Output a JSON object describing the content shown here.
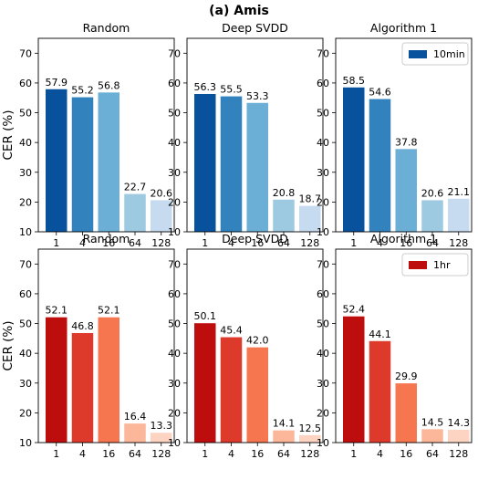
{
  "figure": {
    "suptitle": "(a) Amis",
    "ylabel": "CER (%)",
    "yticks": [
      10,
      20,
      30,
      40,
      50,
      60,
      70
    ],
    "ylim": [
      10,
      75
    ]
  },
  "chart_data": [
    {
      "type": "bar",
      "row": 0,
      "col": 0,
      "title": "Random",
      "categories": [
        "1",
        "4",
        "16",
        "64",
        "128"
      ],
      "values": [
        57.9,
        55.2,
        56.8,
        22.7,
        20.6
      ],
      "labels": [
        "57.9",
        "55.2",
        "56.8",
        "22.7",
        "20.6"
      ],
      "colors": [
        "#08519c",
        "#3182bd",
        "#6baed6",
        "#9ecae1",
        "#c6dbef"
      ],
      "ylabel": "CER (%)",
      "ylim": [
        10,
        75
      ],
      "grid": false
    },
    {
      "type": "bar",
      "row": 0,
      "col": 1,
      "title": "Deep SVDD",
      "categories": [
        "1",
        "4",
        "16",
        "64",
        "128"
      ],
      "values": [
        56.3,
        55.5,
        53.3,
        20.8,
        18.7
      ],
      "labels": [
        "56.3",
        "55.5",
        "53.3",
        "20.8",
        "18.7"
      ],
      "colors": [
        "#08519c",
        "#3182bd",
        "#6baed6",
        "#9ecae1",
        "#c6dbef"
      ],
      "ylim": [
        10,
        75
      ],
      "grid": false
    },
    {
      "type": "bar",
      "row": 0,
      "col": 2,
      "title": "Algorithm 1",
      "categories": [
        "1",
        "4",
        "16",
        "64",
        "128"
      ],
      "values": [
        58.5,
        54.6,
        37.8,
        20.6,
        21.1
      ],
      "labels": [
        "58.5",
        "54.6",
        "37.8",
        "20.6",
        "21.1"
      ],
      "colors": [
        "#08519c",
        "#3182bd",
        "#6baed6",
        "#9ecae1",
        "#c6dbef"
      ],
      "ylim": [
        10,
        75
      ],
      "grid": false,
      "legend": {
        "label": "10min",
        "color": "#08519c",
        "position": "top-right"
      }
    },
    {
      "type": "bar",
      "row": 1,
      "col": 0,
      "title": "Random",
      "categories": [
        "1",
        "4",
        "16",
        "64",
        "128"
      ],
      "values": [
        52.1,
        46.8,
        52.1,
        16.4,
        13.3
      ],
      "labels": [
        "52.1",
        "46.8",
        "52.1",
        "16.4",
        "13.3"
      ],
      "colors": [
        "#bd0d0d",
        "#de3a2c",
        "#f6764f",
        "#fcb79a",
        "#fdd4c2"
      ],
      "ylabel": "CER (%)",
      "ylim": [
        10,
        75
      ],
      "grid": false
    },
    {
      "type": "bar",
      "row": 1,
      "col": 1,
      "title": "Deep SVDD",
      "categories": [
        "1",
        "4",
        "16",
        "64",
        "128"
      ],
      "values": [
        50.1,
        45.4,
        42.0,
        14.1,
        12.5
      ],
      "labels": [
        "50.1",
        "45.4",
        "42.0",
        "14.1",
        "12.5"
      ],
      "colors": [
        "#bd0d0d",
        "#de3a2c",
        "#f6764f",
        "#fcb79a",
        "#fdd4c2"
      ],
      "ylim": [
        10,
        75
      ],
      "grid": false
    },
    {
      "type": "bar",
      "row": 1,
      "col": 2,
      "title": "Algorithm 1",
      "categories": [
        "1",
        "4",
        "16",
        "64",
        "128"
      ],
      "values": [
        52.4,
        44.1,
        29.9,
        14.5,
        14.3
      ],
      "labels": [
        "52.4",
        "44.1",
        "29.9",
        "14.5",
        "14.3"
      ],
      "colors": [
        "#bd0d0d",
        "#de3a2c",
        "#f6764f",
        "#fcb79a",
        "#fdd4c2"
      ],
      "ylim": [
        10,
        75
      ],
      "grid": false,
      "legend": {
        "label": "1hr",
        "color": "#bd0d0d",
        "position": "top-right"
      }
    }
  ]
}
